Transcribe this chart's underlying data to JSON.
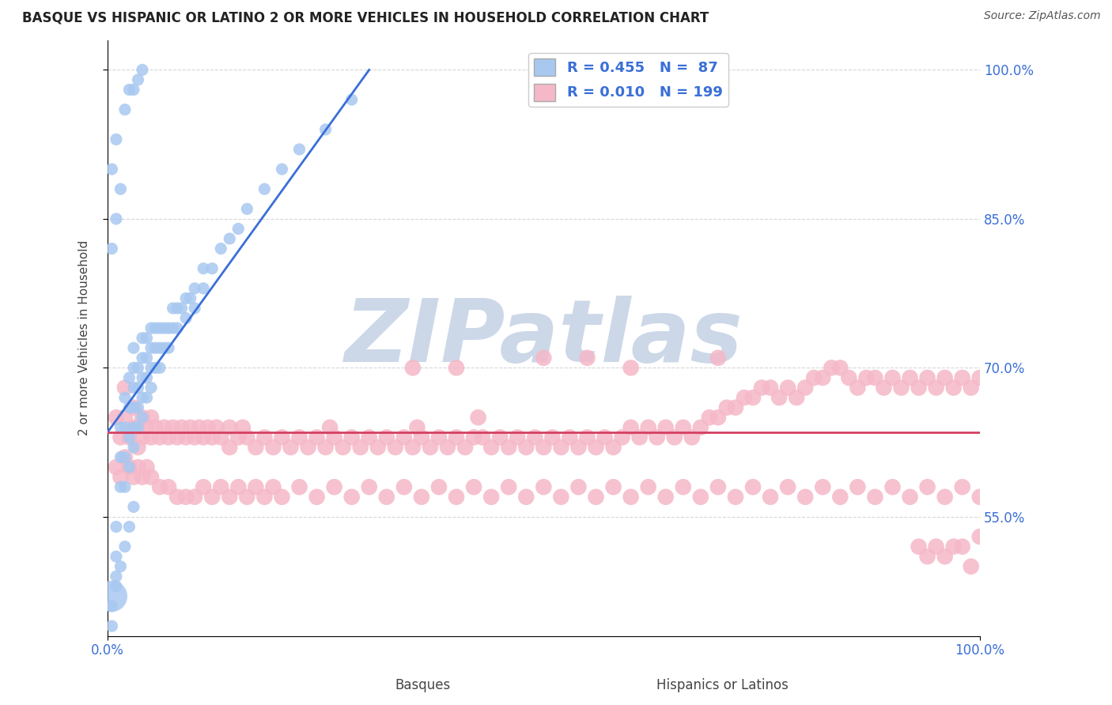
{
  "title": "BASQUE VS HISPANIC OR LATINO 2 OR MORE VEHICLES IN HOUSEHOLD CORRELATION CHART",
  "source": "Source: ZipAtlas.com",
  "xlabel_basque": "Basques",
  "xlabel_hispanic": "Hispanics or Latinos",
  "ylabel": "2 or more Vehicles in Household",
  "xlim": [
    0.0,
    1.0
  ],
  "ylim": [
    0.43,
    1.03
  ],
  "yticks": [
    0.55,
    0.7,
    0.85,
    1.0
  ],
  "ytick_labels": [
    "55.0%",
    "70.0%",
    "85.0%",
    "100.0%"
  ],
  "xtick_labels": [
    "0.0%",
    "100.0%"
  ],
  "blue_R": 0.455,
  "blue_N": 87,
  "pink_R": 0.01,
  "pink_N": 199,
  "blue_color": "#a8c8f0",
  "blue_line_color": "#3a6fd8",
  "pink_color": "#f5b8c8",
  "pink_line_color": "#d44060",
  "watermark": "ZIPatlas",
  "watermark_color": "#ccd8e8",
  "legend_label_blue": "Basques",
  "legend_label_pink": "Hispanics or Latinos",
  "blue_trend_x": [
    0.0,
    0.32
  ],
  "blue_trend_y": [
    0.635,
    1.0
  ],
  "pink_trend_y": 0.635,
  "blue_scatter_x": [
    0.005,
    0.01,
    0.01,
    0.01,
    0.015,
    0.015,
    0.015,
    0.02,
    0.02,
    0.02,
    0.02,
    0.025,
    0.025,
    0.025,
    0.025,
    0.03,
    0.03,
    0.03,
    0.03,
    0.03,
    0.03,
    0.035,
    0.035,
    0.035,
    0.035,
    0.04,
    0.04,
    0.04,
    0.04,
    0.04,
    0.045,
    0.045,
    0.045,
    0.045,
    0.05,
    0.05,
    0.05,
    0.05,
    0.055,
    0.055,
    0.055,
    0.06,
    0.06,
    0.06,
    0.065,
    0.065,
    0.07,
    0.07,
    0.075,
    0.075,
    0.08,
    0.08,
    0.085,
    0.09,
    0.09,
    0.095,
    0.1,
    0.1,
    0.11,
    0.11,
    0.12,
    0.13,
    0.14,
    0.15,
    0.16,
    0.18,
    0.2,
    0.22,
    0.25,
    0.28,
    0.005,
    0.01,
    0.02,
    0.025,
    0.03,
    0.035,
    0.04,
    0.005,
    0.01,
    0.015,
    0.02,
    0.025,
    0.03,
    0.005,
    0.01,
    0.015,
    0.005
  ],
  "blue_scatter_y": [
    0.47,
    0.49,
    0.51,
    0.54,
    0.58,
    0.61,
    0.64,
    0.58,
    0.61,
    0.64,
    0.67,
    0.6,
    0.63,
    0.66,
    0.69,
    0.62,
    0.64,
    0.66,
    0.68,
    0.7,
    0.72,
    0.64,
    0.66,
    0.68,
    0.7,
    0.65,
    0.67,
    0.69,
    0.71,
    0.73,
    0.67,
    0.69,
    0.71,
    0.73,
    0.68,
    0.7,
    0.72,
    0.74,
    0.7,
    0.72,
    0.74,
    0.7,
    0.72,
    0.74,
    0.72,
    0.74,
    0.72,
    0.74,
    0.74,
    0.76,
    0.74,
    0.76,
    0.76,
    0.75,
    0.77,
    0.77,
    0.76,
    0.78,
    0.78,
    0.8,
    0.8,
    0.82,
    0.83,
    0.84,
    0.86,
    0.88,
    0.9,
    0.92,
    0.94,
    0.97,
    0.9,
    0.93,
    0.96,
    0.98,
    0.98,
    0.99,
    1.0,
    0.46,
    0.48,
    0.5,
    0.52,
    0.54,
    0.56,
    0.82,
    0.85,
    0.88,
    0.44
  ],
  "blue_scatter_size": [
    800,
    120,
    120,
    120,
    120,
    120,
    120,
    120,
    120,
    120,
    120,
    120,
    120,
    120,
    120,
    120,
    120,
    120,
    120,
    120,
    120,
    120,
    120,
    120,
    120,
    120,
    120,
    120,
    120,
    120,
    120,
    120,
    120,
    120,
    120,
    120,
    120,
    120,
    120,
    120,
    120,
    120,
    120,
    120,
    120,
    120,
    120,
    120,
    120,
    120,
    120,
    120,
    120,
    120,
    120,
    120,
    120,
    120,
    120,
    120,
    120,
    120,
    120,
    120,
    120,
    120,
    120,
    120,
    120,
    120,
    120,
    120,
    120,
    120,
    120,
    120,
    120,
    120,
    120,
    120,
    120,
    120,
    120,
    120,
    120,
    120,
    120
  ],
  "pink_scatter_x": [
    0.01,
    0.015,
    0.02,
    0.02,
    0.025,
    0.03,
    0.03,
    0.035,
    0.035,
    0.04,
    0.04,
    0.045,
    0.05,
    0.05,
    0.055,
    0.06,
    0.065,
    0.07,
    0.075,
    0.08,
    0.085,
    0.09,
    0.095,
    0.1,
    0.105,
    0.11,
    0.115,
    0.12,
    0.125,
    0.13,
    0.14,
    0.14,
    0.15,
    0.155,
    0.16,
    0.17,
    0.18,
    0.19,
    0.2,
    0.21,
    0.22,
    0.23,
    0.24,
    0.25,
    0.255,
    0.26,
    0.27,
    0.28,
    0.29,
    0.3,
    0.31,
    0.32,
    0.33,
    0.34,
    0.35,
    0.355,
    0.36,
    0.37,
    0.38,
    0.39,
    0.4,
    0.41,
    0.42,
    0.425,
    0.43,
    0.44,
    0.45,
    0.46,
    0.47,
    0.48,
    0.49,
    0.5,
    0.51,
    0.52,
    0.53,
    0.54,
    0.55,
    0.56,
    0.57,
    0.58,
    0.59,
    0.6,
    0.61,
    0.62,
    0.63,
    0.64,
    0.65,
    0.66,
    0.67,
    0.68,
    0.69,
    0.7,
    0.71,
    0.72,
    0.73,
    0.74,
    0.75,
    0.76,
    0.77,
    0.78,
    0.79,
    0.8,
    0.81,
    0.82,
    0.83,
    0.84,
    0.85,
    0.86,
    0.87,
    0.88,
    0.89,
    0.9,
    0.91,
    0.92,
    0.93,
    0.94,
    0.95,
    0.96,
    0.97,
    0.98,
    0.99,
    1.0,
    0.01,
    0.015,
    0.02,
    0.025,
    0.03,
    0.035,
    0.04,
    0.045,
    0.05,
    0.06,
    0.07,
    0.08,
    0.09,
    0.1,
    0.11,
    0.12,
    0.13,
    0.14,
    0.15,
    0.16,
    0.17,
    0.18,
    0.19,
    0.2,
    0.22,
    0.24,
    0.26,
    0.28,
    0.3,
    0.32,
    0.34,
    0.36,
    0.38,
    0.4,
    0.42,
    0.44,
    0.46,
    0.48,
    0.5,
    0.52,
    0.54,
    0.56,
    0.58,
    0.6,
    0.62,
    0.64,
    0.66,
    0.68,
    0.7,
    0.72,
    0.74,
    0.76,
    0.78,
    0.8,
    0.82,
    0.84,
    0.86,
    0.88,
    0.9,
    0.92,
    0.94,
    0.96,
    0.98,
    1.0,
    0.98,
    0.99,
    1.0,
    0.97,
    0.96,
    0.95,
    0.94,
    0.93,
    0.4,
    0.5,
    0.6,
    0.7,
    0.35,
    0.55
  ],
  "pink_scatter_y": [
    0.65,
    0.63,
    0.65,
    0.68,
    0.63,
    0.64,
    0.66,
    0.62,
    0.64,
    0.63,
    0.65,
    0.64,
    0.63,
    0.65,
    0.64,
    0.63,
    0.64,
    0.63,
    0.64,
    0.63,
    0.64,
    0.63,
    0.64,
    0.63,
    0.64,
    0.63,
    0.64,
    0.63,
    0.64,
    0.63,
    0.62,
    0.64,
    0.63,
    0.64,
    0.63,
    0.62,
    0.63,
    0.62,
    0.63,
    0.62,
    0.63,
    0.62,
    0.63,
    0.62,
    0.64,
    0.63,
    0.62,
    0.63,
    0.62,
    0.63,
    0.62,
    0.63,
    0.62,
    0.63,
    0.62,
    0.64,
    0.63,
    0.62,
    0.63,
    0.62,
    0.63,
    0.62,
    0.63,
    0.65,
    0.63,
    0.62,
    0.63,
    0.62,
    0.63,
    0.62,
    0.63,
    0.62,
    0.63,
    0.62,
    0.63,
    0.62,
    0.63,
    0.62,
    0.63,
    0.62,
    0.63,
    0.64,
    0.63,
    0.64,
    0.63,
    0.64,
    0.63,
    0.64,
    0.63,
    0.64,
    0.65,
    0.65,
    0.66,
    0.66,
    0.67,
    0.67,
    0.68,
    0.68,
    0.67,
    0.68,
    0.67,
    0.68,
    0.69,
    0.69,
    0.7,
    0.7,
    0.69,
    0.68,
    0.69,
    0.69,
    0.68,
    0.69,
    0.68,
    0.69,
    0.68,
    0.69,
    0.68,
    0.69,
    0.68,
    0.69,
    0.68,
    0.69,
    0.6,
    0.59,
    0.61,
    0.6,
    0.59,
    0.6,
    0.59,
    0.6,
    0.59,
    0.58,
    0.58,
    0.57,
    0.57,
    0.57,
    0.58,
    0.57,
    0.58,
    0.57,
    0.58,
    0.57,
    0.58,
    0.57,
    0.58,
    0.57,
    0.58,
    0.57,
    0.58,
    0.57,
    0.58,
    0.57,
    0.58,
    0.57,
    0.58,
    0.57,
    0.58,
    0.57,
    0.58,
    0.57,
    0.58,
    0.57,
    0.58,
    0.57,
    0.58,
    0.57,
    0.58,
    0.57,
    0.58,
    0.57,
    0.58,
    0.57,
    0.58,
    0.57,
    0.58,
    0.57,
    0.58,
    0.57,
    0.58,
    0.57,
    0.58,
    0.57,
    0.58,
    0.57,
    0.58,
    0.57,
    0.52,
    0.5,
    0.53,
    0.52,
    0.51,
    0.52,
    0.51,
    0.52,
    0.7,
    0.71,
    0.7,
    0.71,
    0.7,
    0.71
  ]
}
